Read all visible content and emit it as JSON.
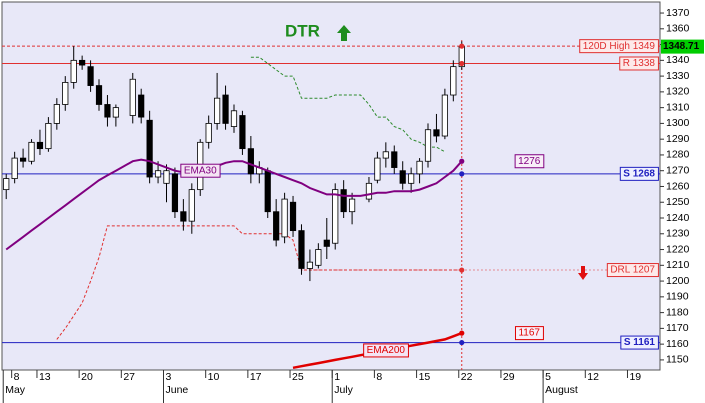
{
  "chart_data": {
    "type": "candlestick",
    "title": "DTR",
    "categories": [
      null,
      "8",
      null,
      null,
      "13",
      null,
      null,
      null,
      null,
      "20",
      null,
      null,
      null,
      null,
      "27",
      null,
      null,
      null,
      null,
      "3",
      null,
      null,
      null,
      null,
      "10",
      null,
      null,
      null,
      null,
      "17",
      null,
      null,
      null,
      null,
      "25",
      null,
      null,
      null,
      null,
      "1",
      null,
      null,
      null,
      null,
      "8",
      null,
      null,
      null,
      null,
      "15",
      null,
      null,
      null,
      null,
      "22",
      null,
      null,
      null,
      null,
      "29",
      null,
      null,
      null,
      null,
      "5",
      null,
      null,
      null,
      null,
      "12",
      null,
      null,
      null,
      null,
      "19",
      null,
      null,
      null
    ],
    "months": [
      "May",
      null,
      null,
      null,
      null,
      null,
      null,
      null,
      null,
      null,
      null,
      null,
      null,
      null,
      null,
      null,
      null,
      null,
      null,
      "June",
      null,
      null,
      null,
      null,
      null,
      null,
      null,
      null,
      null,
      null,
      null,
      null,
      null,
      null,
      null,
      null,
      null,
      null,
      null,
      "July",
      null,
      null,
      null,
      null,
      null,
      null,
      null,
      null,
      null,
      null,
      null,
      null,
      null,
      null,
      null,
      null,
      null,
      null,
      null,
      null,
      null,
      null,
      null,
      null,
      "August",
      null,
      null,
      null,
      null,
      null,
      null,
      null,
      null,
      null,
      null,
      null,
      null,
      null
    ],
    "candles": {
      "up_color": "#ffffff",
      "down_color": "#000000",
      "open": [
        1258,
        1265,
        1278,
        1276,
        1288,
        1284,
        1300,
        1312,
        1326,
        1340,
        1336,
        1324,
        1312,
        1304,
        null,
        1305,
        1318,
        1302,
        1266,
        1262,
        1268,
        1244,
        1238,
        1258,
        1288,
        1300,
        1318,
        1298,
        1305,
        1284,
        1268,
        1270,
        1244,
        1228,
        1250,
        1232,
        1208,
        1210,
        1226,
        1224,
        1258,
        1244,
        null,
        1252,
        1264,
        1278,
        1282,
        1270,
        1262,
        1268,
        1276,
        1296,
        1292,
        1318,
        1336,
        null,
        null,
        null,
        null,
        null,
        null,
        null,
        null,
        null,
        null,
        null,
        null,
        null,
        null,
        null,
        null,
        null,
        null,
        null,
        null,
        null,
        null,
        null
      ],
      "high": [
        1268,
        1282,
        1284,
        1290,
        1296,
        1304,
        1316,
        1330,
        1349,
        1343,
        1340,
        1328,
        1318,
        1312,
        null,
        1332,
        1322,
        1308,
        1276,
        1274,
        1272,
        1252,
        1262,
        1290,
        1305,
        1332,
        1324,
        1312,
        1308,
        1292,
        1276,
        1272,
        1252,
        1256,
        1254,
        1236,
        1220,
        1224,
        1240,
        1262,
        1264,
        1256,
        null,
        1266,
        1282,
        1288,
        1286,
        1276,
        1272,
        1278,
        1300,
        1306,
        1322,
        1340,
        1352,
        null,
        null,
        null,
        null,
        null,
        null,
        null,
        null,
        null,
        null,
        null,
        null,
        null,
        null,
        null,
        null,
        null,
        null,
        null,
        null,
        null,
        null,
        null
      ],
      "low": [
        1252,
        1262,
        1272,
        1274,
        1280,
        1282,
        1296,
        1308,
        1322,
        1334,
        1320,
        1308,
        1298,
        1298,
        null,
        1300,
        1300,
        1262,
        1262,
        1250,
        1240,
        1232,
        1230,
        1254,
        1284,
        1296,
        1296,
        1294,
        1280,
        1262,
        1262,
        1240,
        1222,
        1224,
        1228,
        1204,
        1200,
        1208,
        1214,
        1220,
        1240,
        1236,
        null,
        1250,
        1262,
        1272,
        1268,
        1258,
        1256,
        1262,
        1272,
        1288,
        1290,
        1314,
        1334,
        null,
        null,
        null,
        null,
        null,
        null,
        null,
        null,
        null,
        null,
        null,
        null,
        null,
        null,
        null,
        null,
        null,
        null,
        null,
        null,
        null,
        null,
        null
      ],
      "close": [
        1265,
        1278,
        1276,
        1288,
        1284,
        1300,
        1312,
        1326,
        1340,
        1337,
        1324,
        1312,
        1304,
        1310,
        null,
        1328,
        1304,
        1266,
        1270,
        1270,
        1244,
        1238,
        1258,
        1288,
        1300,
        1316,
        1300,
        1308,
        1284,
        1268,
        1272,
        1244,
        1226,
        1252,
        1232,
        1208,
        1212,
        1220,
        1222,
        1258,
        1244,
        1252,
        null,
        1262,
        1278,
        1282,
        1272,
        1262,
        1268,
        1276,
        1296,
        1292,
        1318,
        1336,
        1348.71,
        null,
        null,
        null,
        null,
        null,
        null,
        null,
        null,
        null,
        null,
        null,
        null,
        null,
        null,
        null,
        null,
        null,
        null,
        null,
        null,
        null,
        null,
        null
      ]
    },
    "series": [
      {
        "name": "EMA30",
        "color": "#800080",
        "values": [
          1220,
          1224,
          1228,
          1232,
          1236,
          1240,
          1244,
          1248,
          1252,
          1256,
          1260,
          1264,
          1267,
          1270,
          1273,
          1276,
          1277,
          1276,
          1274,
          1272,
          1270,
          1269,
          1269,
          1270,
          1271,
          1273,
          1275,
          1276,
          1276,
          1274,
          1272,
          1270,
          1268,
          1266,
          1264,
          1262,
          1259,
          1257,
          1255,
          1255,
          1254,
          1254,
          1254,
          1255,
          1256,
          1256,
          1257,
          1257,
          1257,
          1258,
          1260,
          1262,
          1266,
          1270,
          1276,
          null,
          null,
          null,
          null,
          null,
          null,
          null,
          null,
          null,
          null,
          null,
          null,
          null,
          null,
          null,
          null,
          null,
          null,
          null,
          null,
          null,
          null,
          null
        ]
      },
      {
        "name": "EMA200",
        "color": "#e00000",
        "values": [
          null,
          null,
          null,
          null,
          null,
          null,
          null,
          null,
          null,
          null,
          null,
          null,
          null,
          null,
          null,
          null,
          null,
          null,
          null,
          null,
          null,
          null,
          null,
          null,
          null,
          null,
          null,
          null,
          null,
          null,
          null,
          null,
          null,
          null,
          1145,
          1146,
          1147,
          1148,
          1149,
          1150,
          1151,
          1152,
          1153,
          1154,
          1155,
          1156,
          1157,
          1158,
          1159,
          1160,
          1161,
          1162,
          1163,
          1165,
          1167,
          null,
          null,
          null,
          null,
          null,
          null,
          null,
          null,
          null,
          null,
          null,
          null,
          null,
          null,
          null,
          null,
          null,
          null,
          null,
          null,
          null,
          null,
          null
        ]
      }
    ],
    "overlays": [
      {
        "color": "#2e8b2e",
        "values": [
          null,
          null,
          null,
          null,
          null,
          null,
          null,
          null,
          null,
          null,
          null,
          null,
          null,
          null,
          null,
          null,
          null,
          null,
          null,
          null,
          null,
          null,
          null,
          null,
          null,
          null,
          null,
          null,
          null,
          1342,
          1342,
          1338,
          1334,
          1330,
          1330,
          1316,
          1316,
          1316,
          1316,
          1318,
          1318,
          1318,
          1318,
          1312,
          1304,
          1304,
          1298,
          1296,
          1290,
          1288,
          1285,
          1285,
          1282,
          null,
          null,
          null,
          null,
          null,
          null,
          null,
          null,
          null,
          null,
          null,
          null,
          null,
          null,
          null,
          null,
          null,
          null,
          null,
          null,
          null,
          null,
          null,
          null,
          null
        ]
      },
      {
        "color": "#e03030",
        "values": [
          null,
          null,
          null,
          null,
          null,
          null,
          1163,
          1170,
          1178,
          1186,
          1200,
          1215,
          1235,
          1235,
          1235,
          1235,
          1235,
          1235,
          1235,
          1235,
          1235,
          1235,
          1235,
          1235,
          1235,
          1235,
          1235,
          1235,
          1230,
          1230,
          1230,
          1230,
          1230,
          1230,
          1226,
          1207,
          1207,
          1207,
          1207,
          1207,
          1207,
          1207,
          1207,
          1207,
          1207,
          1207,
          1207,
          1207,
          1207,
          1207,
          1207,
          1207,
          1207,
          1207,
          1207,
          null,
          null,
          null,
          null,
          null,
          null,
          null,
          null,
          null,
          null,
          null,
          null,
          null,
          null,
          null,
          null,
          null,
          null,
          null,
          null,
          null,
          null,
          null
        ]
      }
    ],
    "levels": [
      {
        "label": "120D High 1349",
        "value": 1349,
        "color": "#e03030",
        "style": "dashed"
      },
      {
        "label": "R 1338",
        "value": 1338,
        "color": "#e03030",
        "style": "solid"
      },
      {
        "label": "S 1268",
        "value": 1268,
        "color": "#2020c0",
        "style": "solid"
      },
      {
        "label": "DRL 1207",
        "value": 1207,
        "color": "#e03030",
        "style": "dotted"
      },
      {
        "label": "S 1161",
        "value": 1161,
        "color": "#2020c0",
        "style": "solid"
      }
    ],
    "last_price_color": "#00cc00",
    "ylim": [
      1143.6,
      1377
    ],
    "yticks": [
      1150,
      1160,
      1170,
      1180,
      1190,
      1200,
      1210,
      1220,
      1230,
      1240,
      1250,
      1260,
      1270,
      1280,
      1290,
      1300,
      1310,
      1320,
      1330,
      1340,
      1350,
      1360,
      1370
    ]
  }
}
